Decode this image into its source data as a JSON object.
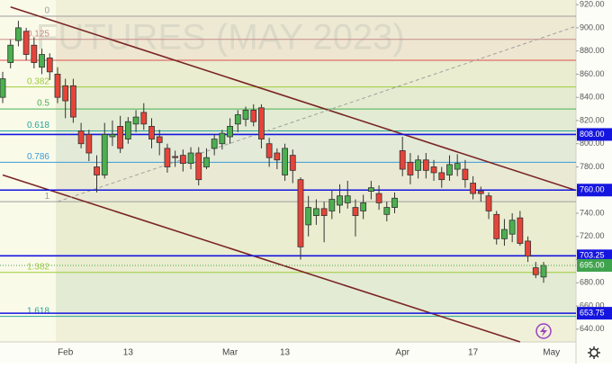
{
  "chart_data": {
    "type": "candlestick",
    "watermark": "FUTURES (MAY 2023)",
    "categories": [
      null,
      null,
      null,
      null,
      null,
      null,
      null,
      null,
      "Feb",
      null,
      null,
      null,
      null,
      null,
      null,
      null,
      "13",
      null,
      null,
      null,
      null,
      null,
      null,
      null,
      null,
      null,
      null,
      null,
      null,
      "Mar",
      null,
      null,
      null,
      null,
      null,
      null,
      "13",
      null,
      null,
      null,
      null,
      null,
      null,
      null,
      null,
      null,
      null,
      null,
      null,
      null,
      null,
      "Apr",
      null,
      null,
      null,
      null,
      null,
      null,
      null,
      null,
      "17",
      null,
      null,
      null,
      null,
      null,
      null,
      null,
      null,
      null,
      "May",
      null,
      null,
      null
    ],
    "open": [
      840,
      870,
      889,
      897,
      885,
      866,
      874,
      860,
      850,
      850,
      811,
      808,
      780,
      773,
      806,
      815,
      804,
      817,
      827,
      815,
      806,
      796,
      789,
      790,
      783,
      792,
      780,
      796,
      800,
      806,
      817,
      821,
      829,
      831,
      800,
      792,
      773,
      790,
      769,
      730,
      738,
      744,
      742,
      747,
      749,
      745,
      742,
      759,
      757,
      739,
      745,
      794,
      784,
      777,
      786,
      780,
      775,
      773,
      778,
      778,
      766,
      759,
      755,
      739,
      718,
      722,
      736,
      716,
      693,
      685,
      null,
      null,
      null,
      null
    ],
    "high": [
      862,
      890,
      906,
      900,
      892,
      882,
      878,
      866,
      856,
      856,
      818,
      812,
      790,
      818,
      820,
      824,
      823,
      829,
      835,
      822,
      812,
      800,
      794,
      795,
      797,
      797,
      796,
      808,
      812,
      822,
      829,
      832,
      834,
      834,
      805,
      796,
      800,
      795,
      771,
      755,
      752,
      750,
      760,
      765,
      768,
      752,
      756,
      768,
      764,
      750,
      758,
      806,
      792,
      790,
      792,
      786,
      780,
      790,
      791,
      786,
      772,
      763,
      758,
      742,
      735,
      740,
      742,
      720,
      698,
      698,
      null,
      null,
      null,
      null
    ],
    "low": [
      835,
      865,
      884,
      872,
      865,
      860,
      855,
      835,
      822,
      818,
      796,
      785,
      758,
      770,
      798,
      792,
      800,
      810,
      812,
      796,
      790,
      775,
      780,
      776,
      778,
      764,
      778,
      790,
      795,
      800,
      810,
      815,
      815,
      796,
      780,
      778,
      768,
      766,
      700,
      720,
      730,
      715,
      735,
      740,
      744,
      720,
      735,
      752,
      743,
      733,
      740,
      772,
      765,
      770,
      770,
      768,
      762,
      768,
      772,
      762,
      752,
      750,
      735,
      713,
      712,
      715,
      712,
      698,
      684,
      680,
      null,
      null,
      null,
      null
    ],
    "close": [
      856,
      885,
      900,
      877,
      870,
      877,
      862,
      840,
      837,
      823,
      800,
      792,
      773,
      808,
      808,
      796,
      819,
      823,
      817,
      804,
      801,
      780,
      788,
      783,
      792,
      769,
      788,
      804,
      809,
      815,
      825,
      829,
      819,
      804,
      788,
      786,
      796,
      777,
      711,
      745,
      744,
      738,
      752,
      755,
      755,
      738,
      749,
      762,
      749,
      745,
      753,
      778,
      773,
      786,
      777,
      775,
      769,
      782,
      783,
      769,
      757,
      757,
      742,
      718,
      726,
      734,
      714,
      703,
      687,
      695,
      null,
      null,
      null,
      null
    ],
    "up_color": "#4caf50",
    "down_color": "#e5443a",
    "ylim": [
      629,
      924
    ],
    "yticks": [
      {
        "value": 640,
        "label": "640.00"
      },
      {
        "value": 660,
        "label": "660.00"
      },
      {
        "value": 680,
        "label": "680.00"
      },
      {
        "value": 700,
        "label": "700.00"
      },
      {
        "value": 720,
        "label": "720.00"
      },
      {
        "value": 740,
        "label": "740.00"
      },
      {
        "value": 760,
        "label": "760.00"
      },
      {
        "value": 780,
        "label": "780.00"
      },
      {
        "value": 800,
        "label": "800.00"
      },
      {
        "value": 820,
        "label": "820.00"
      },
      {
        "value": 840,
        "label": "840.00"
      },
      {
        "value": 860,
        "label": "860.00"
      },
      {
        "value": 880,
        "label": "880.00"
      },
      {
        "value": 900,
        "label": "900.00"
      },
      {
        "value": 920,
        "label": "920.00"
      }
    ],
    "fib_levels": [
      {
        "label": "0",
        "value": 910,
        "color": "#9e9e9e"
      },
      {
        "label": "0.125",
        "value": 890,
        "color": "#c98b8b"
      },
      {
        "value": 872,
        "color": "#e05050"
      },
      {
        "label": "0.382",
        "value": 849,
        "color": "#9ccc3c"
      },
      {
        "label": "0.5",
        "value": 830,
        "color": "#4caf50"
      },
      {
        "label": "0.618",
        "value": 811,
        "color": "#26a69a"
      },
      {
        "label": "0.786",
        "value": 784,
        "color": "#3a9bd8"
      },
      {
        "label": "1",
        "value": 750,
        "color": "#9e9e9e"
      },
      {
        "label": "1.382",
        "value": 689,
        "color": "#9ccc3c"
      },
      {
        "label": "1.618",
        "value": 651,
        "color": "#26a69a"
      }
    ],
    "levels": [
      {
        "value": 808,
        "label": "808.00",
        "color": "#1515e0"
      },
      {
        "value": 760,
        "label": "760.00",
        "color": "#1515e0"
      },
      {
        "value": 703.25,
        "label": "703.25",
        "color": "#1515e0"
      },
      {
        "value": 653.75,
        "label": "653.75",
        "color": "#1515e0"
      }
    ],
    "last_price": {
      "value": 695,
      "label": "695.00",
      "color": "#3fa34d"
    },
    "trendlines": [
      {
        "points": [
          [
            1,
            918
          ],
          [
            73,
            760
          ]
        ],
        "color": "#7a2525",
        "style": "solid"
      },
      {
        "points": [
          [
            0,
            773
          ],
          [
            66,
            629
          ]
        ],
        "color": "#7a2525",
        "style": "solid"
      },
      {
        "points": [
          [
            7,
            750
          ],
          [
            73,
            901
          ]
        ],
        "color": "#a0a0a0",
        "style": "dashed"
      }
    ]
  }
}
